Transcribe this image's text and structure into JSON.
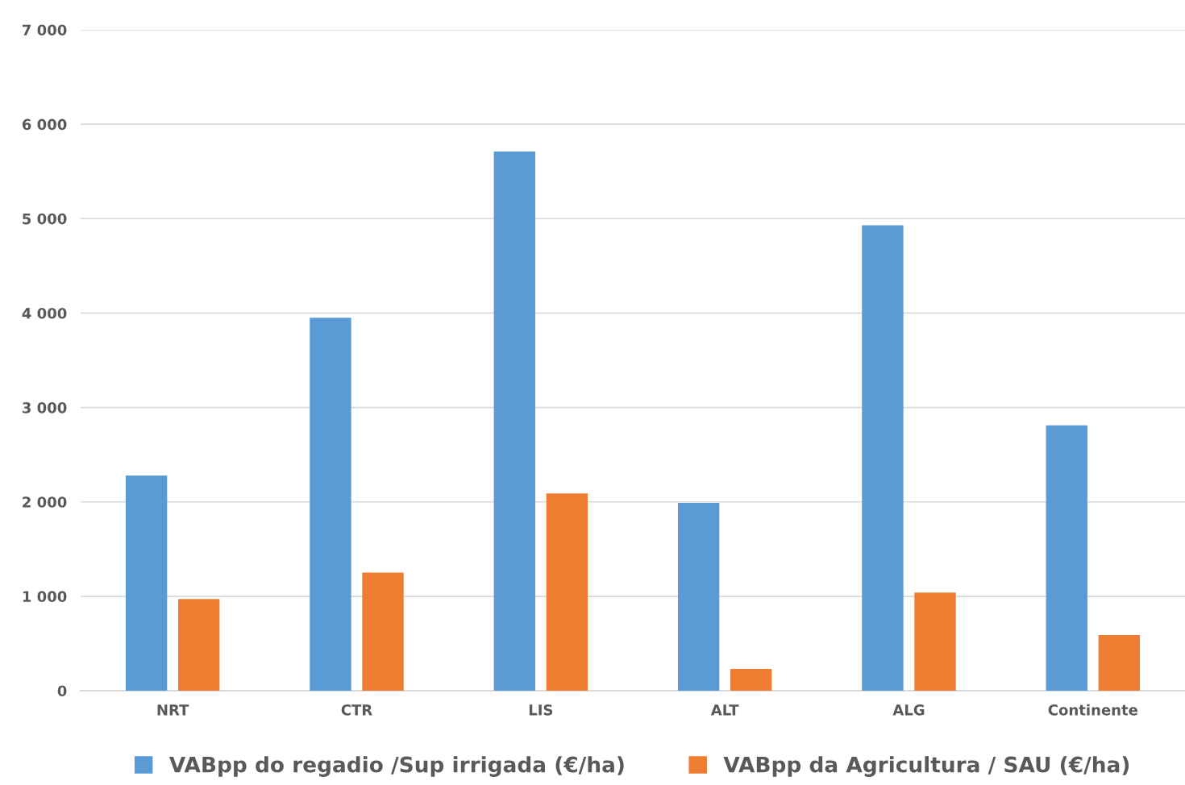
{
  "chart_data": {
    "type": "bar",
    "categories": [
      "NRT",
      "CTR",
      "LIS",
      "ALT",
      "ALG",
      "Continente"
    ],
    "series": [
      {
        "name": "VABpp do regadio /Sup irrigada (€/ha)",
        "color": "#5b9bd5",
        "values": [
          2280,
          3950,
          5710,
          1990,
          4930,
          2810
        ]
      },
      {
        "name": "VABpp da Agricultura / SAU (€/ha)",
        "color": "#ed7d31",
        "values": [
          970,
          1250,
          2090,
          230,
          1040,
          590
        ]
      }
    ],
    "ylim": [
      0,
      7000
    ],
    "yticks": [
      {
        "value": 0,
        "label": "0"
      },
      {
        "value": 1000,
        "label": "1 000"
      },
      {
        "value": 2000,
        "label": "2 000"
      },
      {
        "value": 3000,
        "label": "3 000"
      },
      {
        "value": 4000,
        "label": "4 000"
      },
      {
        "value": 5000,
        "label": "5 000"
      },
      {
        "value": 6000,
        "label": "6 000"
      },
      {
        "value": 7000,
        "label": "7 000"
      }
    ],
    "grid": "y",
    "legend": "bottom"
  }
}
